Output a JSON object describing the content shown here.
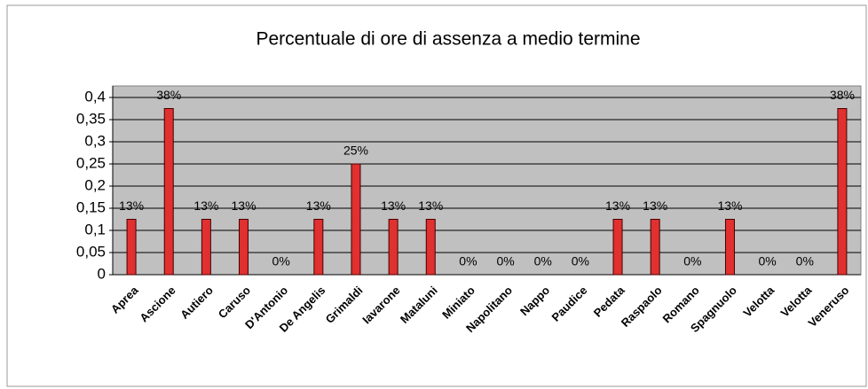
{
  "chart_data": {
    "type": "bar",
    "title": "Percentuale di ore di assenza a medio termine",
    "categories": [
      "Aprea",
      "Ascione",
      "Autiero",
      "Caruso",
      "D'Antonio",
      "De Angelis",
      "Grimaldi",
      "Iavarone",
      "Mataluni",
      "Miniato",
      "Napolitano",
      "Nappo",
      "Paudice",
      "Pedata",
      "Raspaolo",
      "Romano",
      "Spagnuolo",
      "Velotta",
      "Velotta",
      "Veneruso"
    ],
    "values": [
      0.125,
      0.375,
      0.125,
      0.125,
      0,
      0.125,
      0.25,
      0.125,
      0.125,
      0,
      0,
      0,
      0,
      0.125,
      0.125,
      0,
      0.125,
      0,
      0,
      0.375
    ],
    "value_labels": [
      "13%",
      "38%",
      "13%",
      "13%",
      "0%",
      "13%",
      "25%",
      "13%",
      "13%",
      "0%",
      "0%",
      "0%",
      "0%",
      "13%",
      "13%",
      "0%",
      "13%",
      "0%",
      "0%",
      "38%"
    ],
    "color": "#e03030",
    "ylim": [
      0,
      0.4
    ],
    "yticks": [
      0,
      {
        "value": 0.05,
        "label": "0,05"
      },
      {
        "value": 0.1,
        "label": "0,1"
      },
      {
        "value": 0.15,
        "label": "0,15"
      },
      {
        "value": 0.2,
        "label": "0,2"
      },
      {
        "value": 0.25,
        "label": "0,25"
      },
      {
        "value": 0.3,
        "label": "0,3"
      },
      {
        "value": 0.35,
        "label": "0,35"
      },
      {
        "value": 0.4,
        "label": "0,4"
      }
    ],
    "grid": true
  }
}
